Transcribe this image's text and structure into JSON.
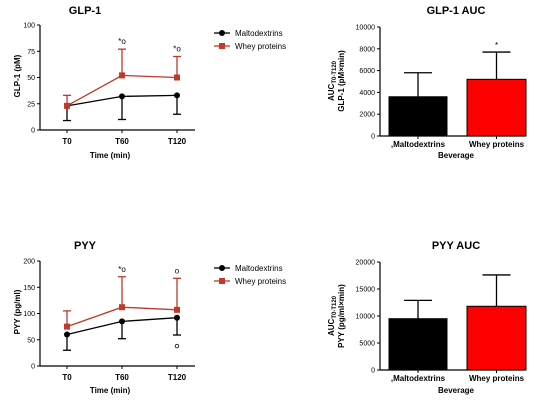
{
  "chart_data": [
    {
      "type": "line",
      "title": "GLP-1",
      "xlabel": "Time (min)",
      "ylabel": "GLP-1 (pM)",
      "categories": [
        "T0",
        "T60",
        "T120"
      ],
      "ylim": [
        0,
        100
      ],
      "yticks": [
        "0",
        "25",
        "50",
        "75",
        "100"
      ],
      "legend": "right",
      "series": [
        {
          "name": "Maltodextrins",
          "color": "#000000",
          "marker": "circle",
          "values": [
            23,
            32,
            33
          ],
          "errors": [
            14,
            22,
            18
          ]
        },
        {
          "name": "Whey proteins",
          "color": "#c0392b",
          "marker": "square",
          "values": [
            23,
            52,
            50
          ],
          "errors": [
            10,
            25,
            20
          ]
        }
      ],
      "annotations": [
        {
          "category": "T60",
          "text": "*o"
        },
        {
          "category": "T120",
          "text": "*o"
        }
      ]
    },
    {
      "type": "bar",
      "title": "GLP-1 AUC",
      "xlabel": "Beverage",
      "ylabel_line1": "AUC",
      "ylabel_sub": "T0-T120",
      "ylabel_line2": "GLP-1 (pM×min)",
      "categories": [
        ",Maltodextrins",
        "Whey proteins"
      ],
      "values": [
        3600,
        5200
      ],
      "errors": [
        2200,
        2500
      ],
      "colors": [
        "#000000",
        "#ff0000"
      ],
      "ylim": [
        0,
        10000
      ],
      "yticks": [
        "0",
        "2000",
        "4000",
        "6000",
        "8000",
        "10000"
      ],
      "annotations": [
        {
          "category": "Whey proteins",
          "text": "*"
        }
      ]
    },
    {
      "type": "line",
      "title": "PYY",
      "xlabel": "Time (min)",
      "ylabel": "PYY (pg/ml)",
      "categories": [
        "T0",
        "T60",
        "T120"
      ],
      "ylim": [
        0,
        200
      ],
      "yticks": [
        "0",
        "50",
        "100",
        "150",
        "200"
      ],
      "legend": "right",
      "series": [
        {
          "name": "Maltodextrins",
          "color": "#000000",
          "marker": "circle",
          "values": [
            60,
            85,
            92
          ],
          "errors": [
            30,
            33,
            33
          ]
        },
        {
          "name": "Whey proteins",
          "color": "#c0392b",
          "marker": "square",
          "values": [
            75,
            112,
            107
          ],
          "errors": [
            30,
            58,
            60
          ]
        }
      ],
      "annotations": [
        {
          "category": "T60",
          "text": "*o"
        },
        {
          "category": "T120",
          "text": "o"
        }
      ],
      "outliers": [
        {
          "category": "T120",
          "value": 38
        }
      ]
    },
    {
      "type": "bar",
      "title": "PYY AUC",
      "xlabel": "Beverage",
      "ylabel_line1": "AUC",
      "ylabel_sub": "T0-T120",
      "ylabel_line2": "PYY (pg/ml×min)",
      "categories": [
        ",Maltodextrins",
        "Whey proteins"
      ],
      "values": [
        9500,
        11800
      ],
      "errors": [
        3400,
        5800
      ],
      "colors": [
        "#000000",
        "#ff0000"
      ],
      "ylim": [
        0,
        20000
      ],
      "yticks": [
        "0",
        "5000",
        "10000",
        "15000",
        "20000"
      ]
    }
  ]
}
